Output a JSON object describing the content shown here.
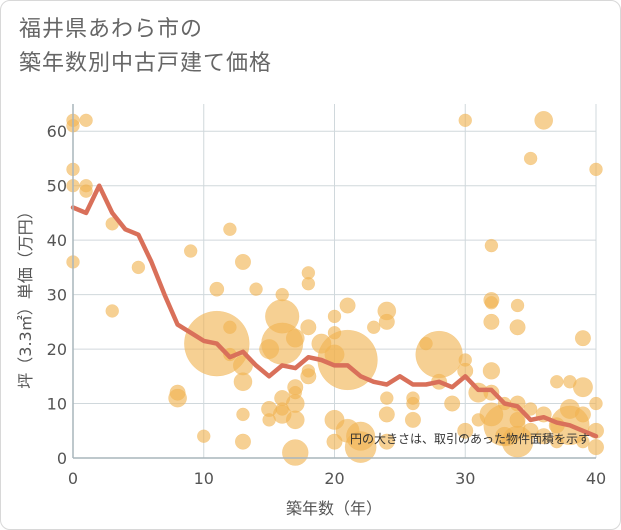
{
  "chart_data": {
    "type": "scatter",
    "title": "福井県あわら市の\n築年数別中古戸建て価格",
    "xlabel": "築年数（年）",
    "ylabel": "坪（3.3㎡）単価（万円）",
    "xlim": [
      0,
      40
    ],
    "ylim": [
      0,
      65
    ],
    "x_ticks": [
      0,
      10,
      20,
      30,
      40
    ],
    "y_ticks": [
      0,
      10,
      20,
      30,
      40,
      50,
      60
    ],
    "grid": true,
    "note": "円の大きさは、取引のあった物件面積を示す",
    "colors": {
      "points": "#f0b350",
      "line": "#d9705a",
      "grid": "#d0d8dc",
      "axis": "#a9b5bc"
    },
    "points": [
      {
        "x": 0,
        "y": 62,
        "s": 1
      },
      {
        "x": 0,
        "y": 61,
        "s": 1
      },
      {
        "x": 1,
        "y": 62,
        "s": 1
      },
      {
        "x": 0,
        "y": 53,
        "s": 1
      },
      {
        "x": 0,
        "y": 50,
        "s": 1
      },
      {
        "x": 1,
        "y": 50,
        "s": 1
      },
      {
        "x": 1,
        "y": 49,
        "s": 1
      },
      {
        "x": 0,
        "y": 36,
        "s": 1
      },
      {
        "x": 3,
        "y": 43,
        "s": 1
      },
      {
        "x": 5,
        "y": 35,
        "s": 1
      },
      {
        "x": 3,
        "y": 27,
        "s": 1
      },
      {
        "x": 9,
        "y": 38,
        "s": 1
      },
      {
        "x": 12,
        "y": 42,
        "s": 1
      },
      {
        "x": 13,
        "y": 36,
        "s": 1.2
      },
      {
        "x": 14,
        "y": 31,
        "s": 1
      },
      {
        "x": 11,
        "y": 31,
        "s": 1.1
      },
      {
        "x": 16,
        "y": 30,
        "s": 1
      },
      {
        "x": 18,
        "y": 34,
        "s": 1
      },
      {
        "x": 18,
        "y": 32,
        "s": 1
      },
      {
        "x": 8,
        "y": 12,
        "s": 1.2
      },
      {
        "x": 8,
        "y": 11,
        "s": 1.4
      },
      {
        "x": 10,
        "y": 4,
        "s": 1
      },
      {
        "x": 11,
        "y": 21,
        "s": 5
      },
      {
        "x": 12,
        "y": 24,
        "s": 1
      },
      {
        "x": 12,
        "y": 19,
        "s": 1
      },
      {
        "x": 13,
        "y": 17,
        "s": 1.5
      },
      {
        "x": 13,
        "y": 14,
        "s": 1.4
      },
      {
        "x": 13,
        "y": 8,
        "s": 1
      },
      {
        "x": 13,
        "y": 3,
        "s": 1.2
      },
      {
        "x": 15,
        "y": 20,
        "s": 1.5
      },
      {
        "x": 15,
        "y": 9,
        "s": 1.2
      },
      {
        "x": 15,
        "y": 7,
        "s": 1
      },
      {
        "x": 16,
        "y": 26,
        "s": 2.6
      },
      {
        "x": 16,
        "y": 21,
        "s": 3.2
      },
      {
        "x": 16,
        "y": 11,
        "s": 1.2
      },
      {
        "x": 16,
        "y": 9,
        "s": 1
      },
      {
        "x": 16,
        "y": 8,
        "s": 1.4
      },
      {
        "x": 17,
        "y": 22,
        "s": 1.4
      },
      {
        "x": 17,
        "y": 13,
        "s": 1.2
      },
      {
        "x": 17,
        "y": 12,
        "s": 1
      },
      {
        "x": 17,
        "y": 10,
        "s": 1.4
      },
      {
        "x": 17,
        "y": 7,
        "s": 1.4
      },
      {
        "x": 17,
        "y": 1,
        "s": 2
      },
      {
        "x": 18,
        "y": 24,
        "s": 1.2
      },
      {
        "x": 18,
        "y": 16,
        "s": 1
      },
      {
        "x": 18,
        "y": 15,
        "s": 1.2
      },
      {
        "x": 19,
        "y": 21,
        "s": 1.5
      },
      {
        "x": 20,
        "y": 26,
        "s": 1
      },
      {
        "x": 20,
        "y": 23,
        "s": 1
      },
      {
        "x": 20,
        "y": 19,
        "s": 1.5
      },
      {
        "x": 20,
        "y": 7,
        "s": 1.5
      },
      {
        "x": 20,
        "y": 3,
        "s": 1.2
      },
      {
        "x": 21,
        "y": 28,
        "s": 1.2
      },
      {
        "x": 21,
        "y": 18,
        "s": 4.6
      },
      {
        "x": 21,
        "y": 5,
        "s": 1.8
      },
      {
        "x": 22,
        "y": 4,
        "s": 2.2
      },
      {
        "x": 22,
        "y": 2,
        "s": 2.4
      },
      {
        "x": 23,
        "y": 24,
        "s": 1
      },
      {
        "x": 24,
        "y": 27,
        "s": 1.4
      },
      {
        "x": 24,
        "y": 25,
        "s": 1.2
      },
      {
        "x": 24,
        "y": 11,
        "s": 1
      },
      {
        "x": 24,
        "y": 8,
        "s": 1.2
      },
      {
        "x": 24,
        "y": 3,
        "s": 1.2
      },
      {
        "x": 26,
        "y": 11,
        "s": 1
      },
      {
        "x": 26,
        "y": 7,
        "s": 1.2
      },
      {
        "x": 26,
        "y": 10,
        "s": 1
      },
      {
        "x": 27,
        "y": 21,
        "s": 1
      },
      {
        "x": 28,
        "y": 19,
        "s": 3.6
      },
      {
        "x": 28,
        "y": 14,
        "s": 1.2
      },
      {
        "x": 29,
        "y": 10,
        "s": 1.2
      },
      {
        "x": 30,
        "y": 62,
        "s": 1
      },
      {
        "x": 30,
        "y": 18,
        "s": 1
      },
      {
        "x": 30,
        "y": 16,
        "s": 1.2
      },
      {
        "x": 30,
        "y": 5,
        "s": 1.2
      },
      {
        "x": 31,
        "y": 12,
        "s": 1.5
      },
      {
        "x": 31,
        "y": 7,
        "s": 1
      },
      {
        "x": 32,
        "y": 39,
        "s": 1
      },
      {
        "x": 32,
        "y": 29,
        "s": 1.2
      },
      {
        "x": 32,
        "y": 28.5,
        "s": 1
      },
      {
        "x": 32,
        "y": 25,
        "s": 1.2
      },
      {
        "x": 32,
        "y": 16,
        "s": 1.3
      },
      {
        "x": 32,
        "y": 12,
        "s": 1.2
      },
      {
        "x": 32,
        "y": 8,
        "s": 1.8
      },
      {
        "x": 33,
        "y": 10,
        "s": 1
      },
      {
        "x": 33,
        "y": 6,
        "s": 3.2
      },
      {
        "x": 33,
        "y": 4,
        "s": 1.4
      },
      {
        "x": 34,
        "y": 28,
        "s": 1
      },
      {
        "x": 34,
        "y": 24,
        "s": 1.2
      },
      {
        "x": 34,
        "y": 10,
        "s": 1.2
      },
      {
        "x": 34,
        "y": 7,
        "s": 1.2
      },
      {
        "x": 34,
        "y": 3,
        "s": 2.4
      },
      {
        "x": 35,
        "y": 55,
        "s": 1
      },
      {
        "x": 35,
        "y": 9,
        "s": 1
      },
      {
        "x": 35,
        "y": 5,
        "s": 1.2
      },
      {
        "x": 36,
        "y": 62,
        "s": 1.4
      },
      {
        "x": 36,
        "y": 8,
        "s": 1.2
      },
      {
        "x": 36,
        "y": 4,
        "s": 1.2
      },
      {
        "x": 37,
        "y": 14,
        "s": 1
      },
      {
        "x": 37,
        "y": 6,
        "s": 1.2
      },
      {
        "x": 37,
        "y": 3,
        "s": 1
      },
      {
        "x": 38,
        "y": 14,
        "s": 1
      },
      {
        "x": 38,
        "y": 9,
        "s": 1.5
      },
      {
        "x": 38,
        "y": 6,
        "s": 3
      },
      {
        "x": 39,
        "y": 22,
        "s": 1.2
      },
      {
        "x": 39,
        "y": 13,
        "s": 1.5
      },
      {
        "x": 39,
        "y": 8,
        "s": 1.2
      },
      {
        "x": 39,
        "y": 3,
        "s": 1
      },
      {
        "x": 40,
        "y": 53,
        "s": 1
      },
      {
        "x": 40,
        "y": 10,
        "s": 1
      },
      {
        "x": 40,
        "y": 5,
        "s": 1.2
      },
      {
        "x": 40,
        "y": 2,
        "s": 1.2
      }
    ],
    "trend": {
      "x": [
        0,
        1,
        2,
        3,
        4,
        5,
        6,
        7,
        8,
        9,
        10,
        11,
        12,
        13,
        14,
        15,
        16,
        17,
        18,
        19,
        20,
        21,
        22,
        23,
        24,
        25,
        26,
        27,
        28,
        29,
        30,
        31,
        32,
        33,
        34,
        35,
        36,
        37,
        38,
        39,
        40
      ],
      "y": [
        46,
        45,
        50,
        45,
        42,
        41,
        36,
        30,
        24.5,
        23,
        21.5,
        21,
        18.5,
        19.5,
        17,
        15,
        17,
        16.5,
        18.5,
        18,
        17,
        17,
        15,
        14,
        13.5,
        15,
        13.5,
        13.5,
        14,
        13,
        15,
        12.5,
        12.5,
        10,
        9.5,
        7,
        7.5,
        6.5,
        6,
        5,
        4
      ]
    }
  }
}
